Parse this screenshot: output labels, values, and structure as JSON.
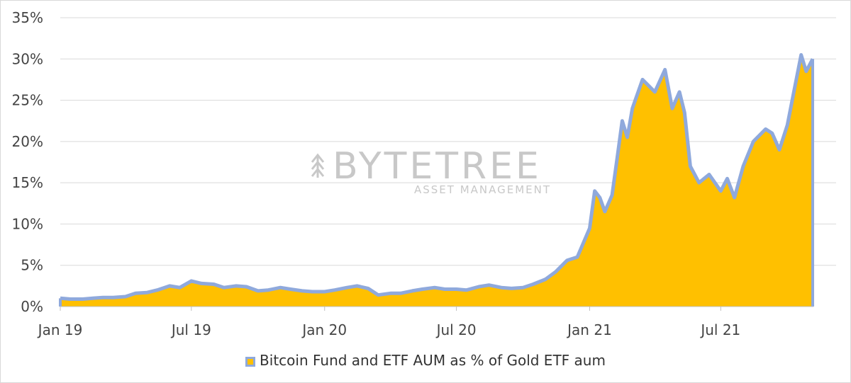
{
  "chart_data": {
    "type": "area",
    "series": [
      {
        "name": "Bitcoin Fund and ETF AUM as % of Gold ETF aum",
        "fill_color": "#FFC000",
        "line_color": "#8FA9DC",
        "points": [
          [
            "2019-01-01",
            1.0
          ],
          [
            "2019-01-15",
            0.9
          ],
          [
            "2019-02-01",
            0.9
          ],
          [
            "2019-02-15",
            1.0
          ],
          [
            "2019-03-01",
            1.1
          ],
          [
            "2019-03-15",
            1.1
          ],
          [
            "2019-04-01",
            1.2
          ],
          [
            "2019-04-15",
            1.6
          ],
          [
            "2019-05-01",
            1.7
          ],
          [
            "2019-05-15",
            2.0
          ],
          [
            "2019-06-01",
            2.5
          ],
          [
            "2019-06-15",
            2.3
          ],
          [
            "2019-07-01",
            3.1
          ],
          [
            "2019-07-15",
            2.8
          ],
          [
            "2019-08-01",
            2.7
          ],
          [
            "2019-08-15",
            2.3
          ],
          [
            "2019-09-01",
            2.5
          ],
          [
            "2019-09-15",
            2.4
          ],
          [
            "2019-10-01",
            1.9
          ],
          [
            "2019-10-15",
            2.0
          ],
          [
            "2019-11-01",
            2.3
          ],
          [
            "2019-11-15",
            2.1
          ],
          [
            "2019-12-01",
            1.9
          ],
          [
            "2019-12-15",
            1.8
          ],
          [
            "2020-01-01",
            1.8
          ],
          [
            "2020-01-15",
            2.0
          ],
          [
            "2020-02-01",
            2.3
          ],
          [
            "2020-02-15",
            2.5
          ],
          [
            "2020-03-01",
            2.2
          ],
          [
            "2020-03-15",
            1.4
          ],
          [
            "2020-04-01",
            1.6
          ],
          [
            "2020-04-15",
            1.6
          ],
          [
            "2020-05-01",
            1.9
          ],
          [
            "2020-05-15",
            2.1
          ],
          [
            "2020-06-01",
            2.3
          ],
          [
            "2020-06-15",
            2.1
          ],
          [
            "2020-07-01",
            2.1
          ],
          [
            "2020-07-15",
            2.0
          ],
          [
            "2020-08-01",
            2.4
          ],
          [
            "2020-08-15",
            2.6
          ],
          [
            "2020-09-01",
            2.3
          ],
          [
            "2020-09-15",
            2.2
          ],
          [
            "2020-10-01",
            2.3
          ],
          [
            "2020-10-15",
            2.7
          ],
          [
            "2020-11-01",
            3.3
          ],
          [
            "2020-11-15",
            4.2
          ],
          [
            "2020-12-01",
            5.6
          ],
          [
            "2020-12-15",
            6.0
          ],
          [
            "2021-01-01",
            9.5
          ],
          [
            "2021-01-08",
            14.0
          ],
          [
            "2021-01-15",
            13.2
          ],
          [
            "2021-01-22",
            11.5
          ],
          [
            "2021-02-01",
            13.5
          ],
          [
            "2021-02-08",
            18.0
          ],
          [
            "2021-02-15",
            22.5
          ],
          [
            "2021-02-22",
            20.5
          ],
          [
            "2021-03-01",
            24.0
          ],
          [
            "2021-03-15",
            27.5
          ],
          [
            "2021-04-01",
            26.0
          ],
          [
            "2021-04-15",
            28.7
          ],
          [
            "2021-04-25",
            24.0
          ],
          [
            "2021-05-05",
            26.0
          ],
          [
            "2021-05-12",
            23.5
          ],
          [
            "2021-05-20",
            17.0
          ],
          [
            "2021-06-01",
            15.0
          ],
          [
            "2021-06-15",
            16.0
          ],
          [
            "2021-07-01",
            14.0
          ],
          [
            "2021-07-10",
            15.5
          ],
          [
            "2021-07-20",
            13.2
          ],
          [
            "2021-08-01",
            17.0
          ],
          [
            "2021-08-15",
            20.0
          ],
          [
            "2021-09-01",
            21.5
          ],
          [
            "2021-09-10",
            21.0
          ],
          [
            "2021-09-20",
            19.0
          ],
          [
            "2021-10-01",
            22.0
          ],
          [
            "2021-10-10",
            26.0
          ],
          [
            "2021-10-20",
            30.5
          ],
          [
            "2021-10-27",
            28.5
          ],
          [
            "2021-11-05",
            30.0
          ]
        ]
      }
    ],
    "x_tick_labels": [
      "Jan 19",
      "Jul 19",
      "Jan 20",
      "Jul 20",
      "Jan 21",
      "Jul 21"
    ],
    "x_tick_dates": [
      "2019-01-01",
      "2019-07-01",
      "2020-01-01",
      "2020-07-01",
      "2021-01-01",
      "2021-07-01"
    ],
    "y_tick_labels": [
      "0%",
      "5%",
      "10%",
      "15%",
      "20%",
      "25%",
      "30%",
      "35%"
    ],
    "y_tick_values": [
      0,
      5,
      10,
      15,
      20,
      25,
      30,
      35
    ],
    "xlim": [
      "2019-01-01",
      "2021-11-05"
    ],
    "ylim": [
      0,
      35
    ],
    "grid": true,
    "legend_position": "bottom"
  },
  "legend": {
    "label": "Bitcoin Fund and ETF AUM as % of Gold ETF aum"
  },
  "watermark": {
    "brand": "BYTETREE",
    "tagline": "ASSET MANAGEMENT"
  }
}
